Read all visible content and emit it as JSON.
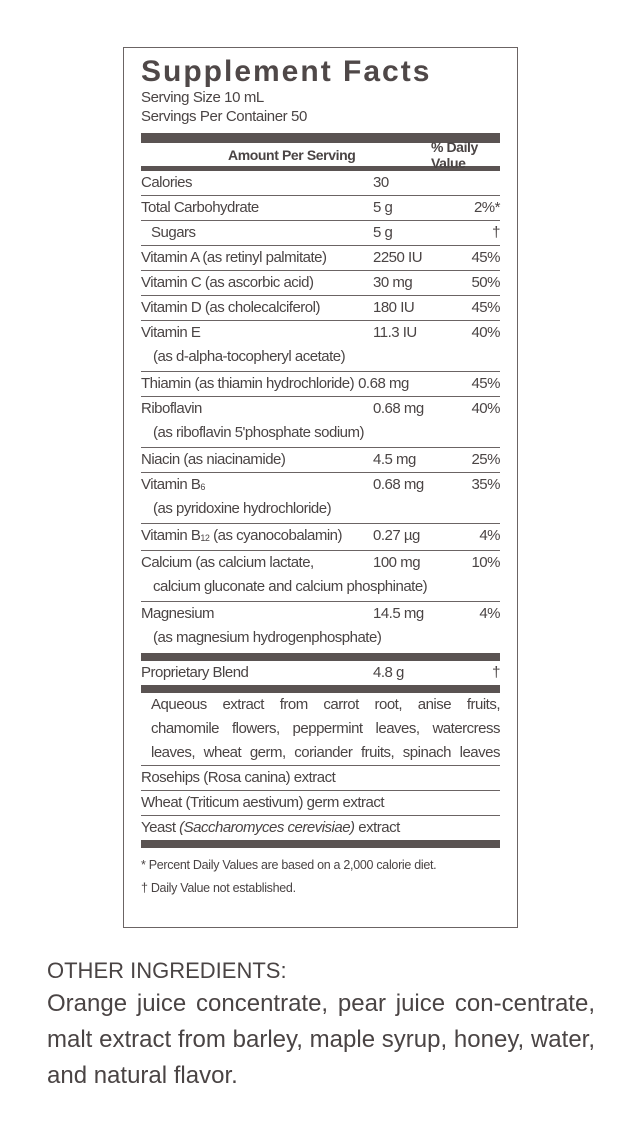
{
  "title": "Supplement Facts",
  "serving_size": "Serving Size 10 mL",
  "servings_per_container": "Servings Per Container 50",
  "header": {
    "amount": "Amount Per Serving",
    "dv": "% Daily Value"
  },
  "rows": [
    {
      "label": "Calories",
      "amount": "30",
      "dv": ""
    },
    {
      "label": "Total Carbohydrate",
      "amount": "5 g",
      "dv": "2%*"
    },
    {
      "label": "Sugars",
      "amount": "5 g",
      "dv": "†"
    },
    {
      "label": "Vitamin A (as retinyl palmitate)",
      "amount": "2250 IU",
      "dv": "45%"
    },
    {
      "label": "Vitamin C (as ascorbic acid)",
      "amount": "30 mg",
      "dv": "50%"
    },
    {
      "label": "Vitamin D (as cholecalciferol)",
      "amount": "180 IU",
      "dv": "45%"
    },
    {
      "label": "Vitamin E",
      "sub": "(as d-alpha-tocopheryl acetate)",
      "amount": "11.3 IU",
      "dv": "40%"
    },
    {
      "label": "Thiamin (as thiamin hydrochloride)",
      "amount": "0.68 mg",
      "dv": "45%"
    },
    {
      "label": "Riboflavin",
      "sub": "(as riboflavin 5'phosphate sodium)",
      "amount": "0.68 mg",
      "dv": "40%"
    },
    {
      "label": "Niacin (as niacinamide)",
      "amount": "4.5 mg",
      "dv": "25%"
    },
    {
      "label": "Vitamin B",
      "subscript": "6",
      "sub": "(as pyridoxine hydrochloride)",
      "amount": "0.68 mg",
      "dv": "35%"
    },
    {
      "label": "Vitamin B",
      "subscript": "12",
      "label_rest": " (as cyanocobalamin)",
      "amount": "0.27 µg",
      "dv": "4%"
    },
    {
      "label": "Calcium (as calcium lactate,",
      "sub": "calcium gluconate and calcium phosphinate)",
      "amount": "100 mg",
      "dv": "10%"
    },
    {
      "label": "Magnesium",
      "sub": "(as magnesium hydrogenphosphate)",
      "amount": "14.5 mg",
      "dv": "4%"
    }
  ],
  "blend": {
    "label": "Proprietary Blend",
    "amount": "4.8 g",
    "dv": "†",
    "lines": [
      "Aqueous extract from carrot root, anise fruits,",
      "chamomile flowers, peppermint leaves, watercress",
      "leaves, wheat germ, coriander fruits, spinach leaves"
    ],
    "items": [
      "Rosehips (Rosa canina) extract",
      "Wheat (Triticum aestivum) germ extract"
    ],
    "yeast_pre": "Yeast ",
    "yeast_italic": "(Saccharomyces cerevisiae)",
    "yeast_post": " extract"
  },
  "footnotes": [
    "* Percent Daily Values are based on a 2,000 calorie diet.",
    "† Daily Value not established."
  ],
  "other": {
    "heading": "OTHER INGREDIENTS:",
    "text": "Orange juice concentrate, pear juice con-centrate, malt extract from barley, maple syrup, honey, water, and natural flavor."
  },
  "colors": {
    "text": "#4a4444",
    "bar": "#5a5352"
  }
}
